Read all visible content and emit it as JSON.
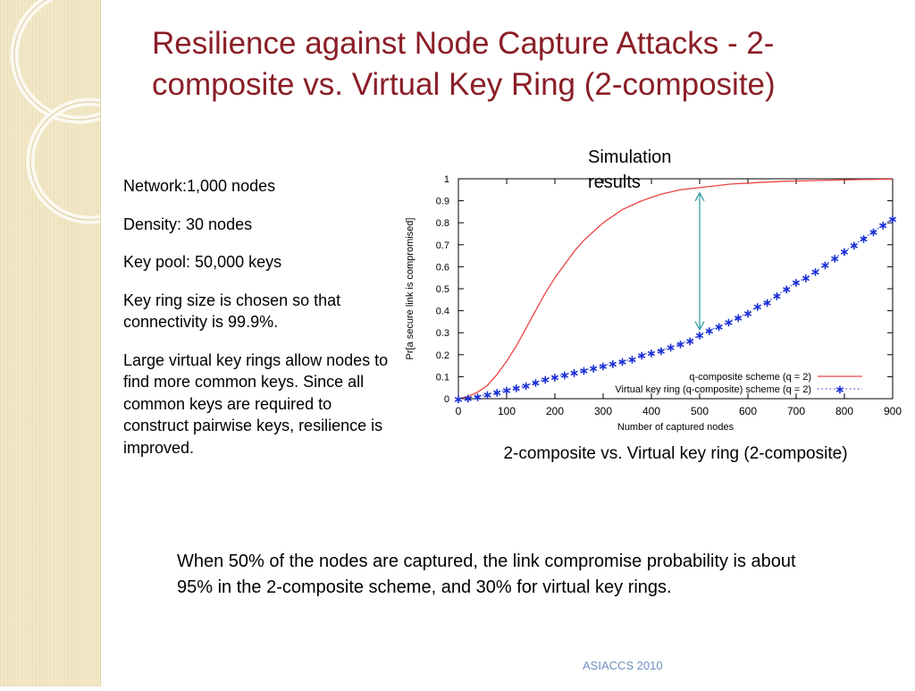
{
  "slide": {
    "title": "Resilience against Node Capture Attacks - 2-composite vs. Virtual Key Ring (2-composite)",
    "notes": [
      "Network:1,000 nodes",
      "Density: 30 nodes",
      "Key pool: 50,000 keys",
      "Key ring size is chosen so that connectivity is 99.9%.",
      "Large virtual key rings allow nodes to find more common keys. Since all common keys are required to construct pairwise keys,  resilience is improved."
    ],
    "annotation": "Simulation results",
    "conclusion": "When 50% of the nodes are captured, the link compromise probability is about 95% in the 2-composite scheme, and 30% for virtual key rings.",
    "footer": "ASIACCS 2010"
  },
  "chart_data": {
    "type": "line",
    "caption": "2-composite vs. Virtual key ring (2-composite)",
    "xlabel": "Number of captured nodes",
    "ylabel": "Pr[a secure link is compromised]",
    "xlim": [
      0,
      900
    ],
    "ylim": [
      0,
      1
    ],
    "xticks": [
      "0",
      "100",
      "200",
      "300",
      "400",
      "500",
      "600",
      "700",
      "800",
      "900"
    ],
    "yticks": [
      "0",
      "0.1",
      "0.2",
      "0.3",
      "0.4",
      "0.5",
      "0.6",
      "0.7",
      "0.8",
      "0.9",
      "1"
    ],
    "grid": false,
    "legend_position": "bottom-right",
    "x": [
      0,
      20,
      40,
      60,
      80,
      100,
      120,
      140,
      160,
      180,
      200,
      220,
      240,
      260,
      280,
      300,
      320,
      340,
      360,
      380,
      400,
      420,
      440,
      460,
      480,
      500,
      520,
      540,
      560,
      580,
      600,
      620,
      640,
      660,
      680,
      700,
      720,
      740,
      760,
      780,
      800,
      820,
      840,
      860,
      880,
      900
    ],
    "series": [
      {
        "name": "q-composite scheme (q = 2)",
        "color": "#ee4444",
        "style": "line",
        "values": [
          0,
          0.01,
          0.03,
          0.06,
          0.11,
          0.17,
          0.24,
          0.32,
          0.4,
          0.48,
          0.55,
          0.61,
          0.67,
          0.72,
          0.76,
          0.8,
          0.83,
          0.86,
          0.88,
          0.9,
          0.915,
          0.93,
          0.94,
          0.95,
          0.955,
          0.96,
          0.965,
          0.97,
          0.975,
          0.978,
          0.98,
          0.983,
          0.985,
          0.987,
          0.989,
          0.99,
          0.991,
          0.992,
          0.993,
          0.994,
          0.995,
          0.996,
          0.997,
          0.997,
          0.998,
          0.998
        ]
      },
      {
        "name": "Virtual key ring (q-composite) scheme (q = 2)",
        "color": "#1a2fd6",
        "style": "dotted-star",
        "values": [
          0,
          0.005,
          0.01,
          0.02,
          0.03,
          0.04,
          0.05,
          0.06,
          0.075,
          0.09,
          0.1,
          0.11,
          0.12,
          0.13,
          0.14,
          0.15,
          0.16,
          0.17,
          0.18,
          0.2,
          0.21,
          0.22,
          0.235,
          0.25,
          0.265,
          0.29,
          0.31,
          0.33,
          0.35,
          0.37,
          0.39,
          0.42,
          0.44,
          0.47,
          0.5,
          0.53,
          0.55,
          0.58,
          0.61,
          0.64,
          0.67,
          0.7,
          0.73,
          0.76,
          0.79,
          0.82
        ]
      }
    ]
  }
}
